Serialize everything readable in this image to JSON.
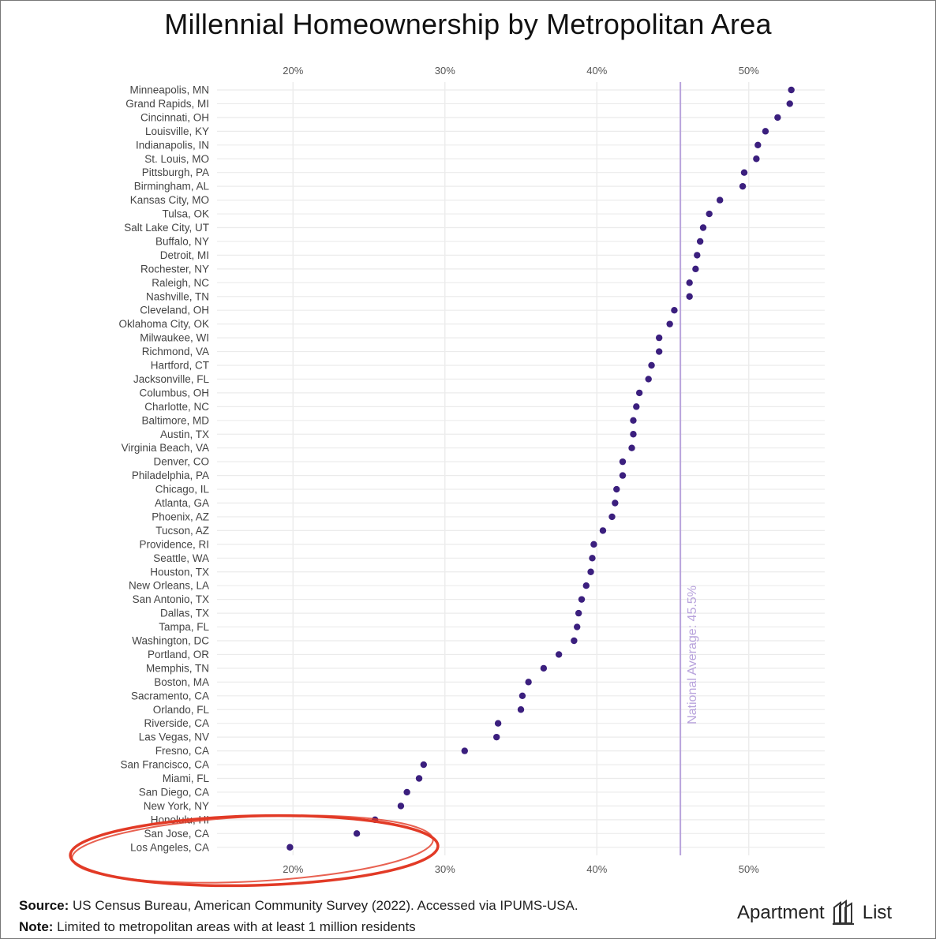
{
  "chart_data": {
    "type": "scatter",
    "title": "Millennial Homeownership by Metropolitan Area",
    "x_ticks": [
      "20%",
      "30%",
      "40%",
      "50%"
    ],
    "x_tick_values": [
      20,
      30,
      40,
      50
    ],
    "xlim": [
      15,
      55
    ],
    "categories": [
      "Minneapolis, MN",
      "Grand Rapids, MI",
      "Cincinnati, OH",
      "Louisville, KY",
      "Indianapolis, IN",
      "St. Louis, MO",
      "Pittsburgh, PA",
      "Birmingham, AL",
      "Kansas City, MO",
      "Tulsa, OK",
      "Salt Lake City, UT",
      "Buffalo, NY",
      "Detroit, MI",
      "Rochester, NY",
      "Raleigh, NC",
      "Nashville, TN",
      "Cleveland, OH",
      "Oklahoma City, OK",
      "Milwaukee, WI",
      "Richmond, VA",
      "Hartford, CT",
      "Jacksonville, FL",
      "Columbus, OH",
      "Charlotte, NC",
      "Baltimore, MD",
      "Austin, TX",
      "Virginia Beach, VA",
      "Denver, CO",
      "Philadelphia, PA",
      "Chicago, IL",
      "Atlanta, GA",
      "Phoenix, AZ",
      "Tucson, AZ",
      "Providence, RI",
      "Seattle, WA",
      "Houston, TX",
      "New Orleans, LA",
      "San Antonio, TX",
      "Dallas, TX",
      "Tampa, FL",
      "Washington, DC",
      "Portland, OR",
      "Memphis, TN",
      "Boston, MA",
      "Sacramento, CA",
      "Orlando, FL",
      "Riverside, CA",
      "Las Vegas, NV",
      "Fresno, CA",
      "San Francisco, CA",
      "Miami, FL",
      "San Diego, CA",
      "New York, NY",
      "Honolulu, HI",
      "San Jose, CA",
      "Los Angeles, CA"
    ],
    "values": [
      52.8,
      52.7,
      51.9,
      51.1,
      50.6,
      50.5,
      49.7,
      49.6,
      48.1,
      47.4,
      47.0,
      46.8,
      46.6,
      46.5,
      46.1,
      46.1,
      45.1,
      44.8,
      44.1,
      44.1,
      43.6,
      43.4,
      42.8,
      42.6,
      42.4,
      42.4,
      42.3,
      41.7,
      41.7,
      41.3,
      41.2,
      41.0,
      40.4,
      39.8,
      39.7,
      39.6,
      39.3,
      39.0,
      38.8,
      38.7,
      38.5,
      37.5,
      36.5,
      35.5,
      35.1,
      35.0,
      33.5,
      33.4,
      31.3,
      28.6,
      28.3,
      27.5,
      27.1,
      25.4,
      24.2,
      19.8
    ],
    "reference_line": {
      "value": 45.5,
      "label": "National Average: 45.5%"
    },
    "colors": {
      "point": "#3b1f7e",
      "reference": "#b8a3dc",
      "grid": "#ebebeb",
      "annotation_circle": "#e23a26"
    }
  },
  "footer": {
    "source_label": "Source:",
    "source_text": " US Census Bureau, American Community Survey (2022). Accessed via IPUMS-USA.",
    "note_label": "Note:",
    "note_text": " Limited to metropolitan areas with at least 1 million residents"
  },
  "brand": {
    "left": "Apartment",
    "right": "List"
  }
}
